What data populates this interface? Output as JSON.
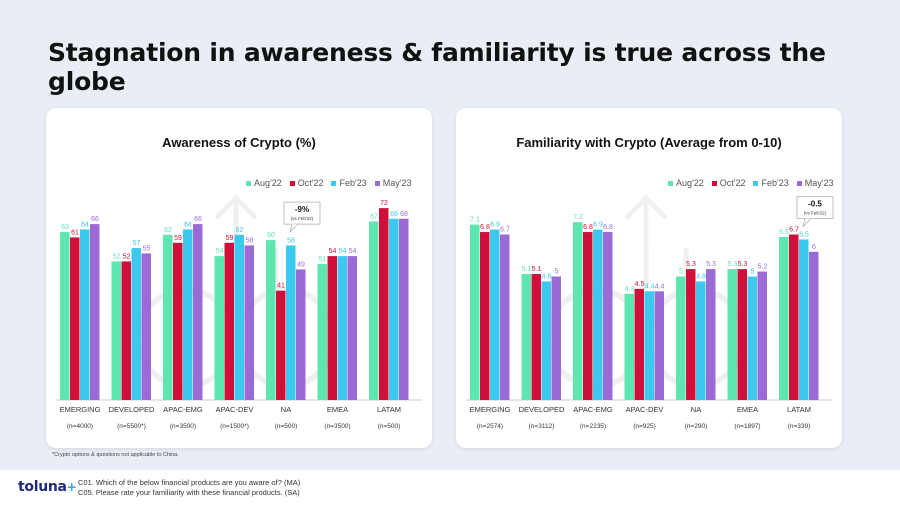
{
  "title": "Stagnation in awareness & familiarity is true across the globe",
  "footnote": "*Crypto options & questions not applicable to China.",
  "logo": "toluna",
  "questions": [
    "C01. Which of the below financial products are you aware of? (MA)",
    "C05. Please rate your familiarity with these financial products. (SA)"
  ],
  "colors": {
    "Aug'22": "#5ee6b0",
    "Oct'22": "#d0103a",
    "Feb'23": "#3cc8ef",
    "May'23": "#9b6ad6"
  },
  "chart_data": [
    {
      "type": "bar",
      "title": "Awareness of Crypto (%)",
      "categories": [
        "EMERGING",
        "DEVELOPED",
        "APAC-EMG",
        "APAC-DEV",
        "NA",
        "EMEA",
        "LATAM"
      ],
      "sample_sizes": [
        "(n=4000)",
        "(n=5500*)",
        "(n=3500)",
        "(n=1500*)",
        "(n=500)",
        "(n=3500)",
        "(n=500)"
      ],
      "series": [
        {
          "name": "Aug'22",
          "values": [
            63,
            52,
            62,
            54,
            60,
            51,
            67
          ]
        },
        {
          "name": "Oct'22",
          "values": [
            61,
            52,
            59,
            59,
            41,
            54,
            72
          ]
        },
        {
          "name": "Feb'23",
          "values": [
            64,
            57,
            64,
            62,
            58,
            54,
            68
          ]
        },
        {
          "name": "May'23",
          "values": [
            66,
            55,
            66,
            58,
            49,
            54,
            68
          ]
        }
      ],
      "ylim": [
        0,
        100
      ],
      "legend": "top-right",
      "grid": false,
      "callout": {
        "text": "-9%",
        "subtext": "(vs Feb'22)",
        "category": "NA"
      }
    },
    {
      "type": "bar",
      "title": "Familiarity with Crypto (Average from 0-10)",
      "categories": [
        "EMERGING",
        "DEVELOPED",
        "APAC-EMG",
        "APAC-DEV",
        "NA",
        "EMEA",
        "LATAM"
      ],
      "sample_sizes": [
        "(n=2574)",
        "(n=3112)",
        "(n=2235)",
        "(n=925)",
        "(n=290)",
        "(n=1897)",
        "(n=339)"
      ],
      "series": [
        {
          "name": "Aug'22",
          "values": [
            7.1,
            5.1,
            7.2,
            4.3,
            5.0,
            5.3,
            6.6
          ]
        },
        {
          "name": "Oct'22",
          "values": [
            6.8,
            5.1,
            6.8,
            4.5,
            5.3,
            5.3,
            6.7
          ]
        },
        {
          "name": "Feb'23",
          "values": [
            6.9,
            4.8,
            6.9,
            4.4,
            4.8,
            5.0,
            6.5
          ]
        },
        {
          "name": "May'23",
          "values": [
            6.7,
            5.0,
            6.8,
            4.4,
            5.3,
            5.2,
            6.0
          ]
        }
      ],
      "ylim": [
        0,
        10
      ],
      "legend": "top-right",
      "grid": false,
      "callout": {
        "text": "-0.5",
        "subtext": "(vs Feb'22)",
        "category": "LATAM"
      }
    }
  ]
}
